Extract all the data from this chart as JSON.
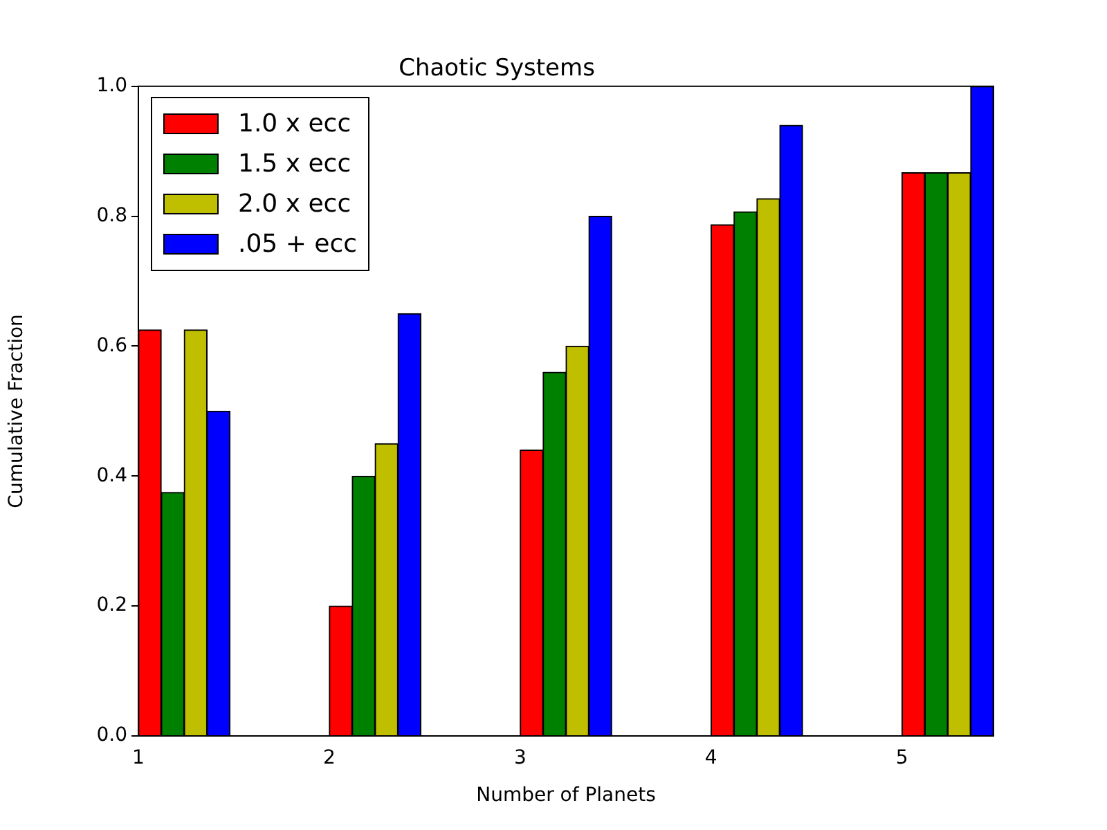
{
  "chart_data": {
    "type": "bar",
    "title": "Chaotic Systems",
    "xlabel": "Number of Planets",
    "ylabel": "Cumulative Fraction",
    "xlim": [
      1,
      5.48
    ],
    "xticks": [
      1,
      2,
      3,
      4,
      5
    ],
    "ylim": [
      0,
      1
    ],
    "yticks": [
      {
        "value": 0,
        "label": "0.0"
      },
      {
        "value": 0.2,
        "label": "0.2"
      },
      {
        "value": 0.4,
        "label": "0.4"
      },
      {
        "value": 0.6,
        "label": "0.6"
      },
      {
        "value": 0.8,
        "label": "0.8"
      },
      {
        "value": 1,
        "label": "1.0"
      }
    ],
    "grid": false,
    "legend": "top left",
    "series": [
      {
        "name": "1.0 x ecc",
        "color": "#ff0000",
        "x": [
          1.06,
          2.06,
          3.06,
          4.06,
          5.06
        ],
        "values": [
          0.625,
          0.2,
          0.44,
          0.787,
          0.867
        ]
      },
      {
        "name": "1.5 x ecc",
        "color": "#008000",
        "x": [
          1.18,
          2.18,
          3.18,
          4.18,
          5.18
        ],
        "values": [
          0.375,
          0.4,
          0.56,
          0.807,
          0.867
        ]
      },
      {
        "name": "2.0 x ecc",
        "color": "#bfbf00",
        "x": [
          1.3,
          2.3,
          3.3,
          4.3,
          5.3
        ],
        "values": [
          0.625,
          0.45,
          0.6,
          0.827,
          0.867
        ]
      },
      {
        "name": ".05 + ecc",
        "color": "#0000ff",
        "x": [
          1.42,
          2.42,
          3.42,
          4.42,
          5.42
        ],
        "values": [
          0.5,
          0.65,
          0.8,
          0.94,
          1.0
        ]
      }
    ]
  }
}
